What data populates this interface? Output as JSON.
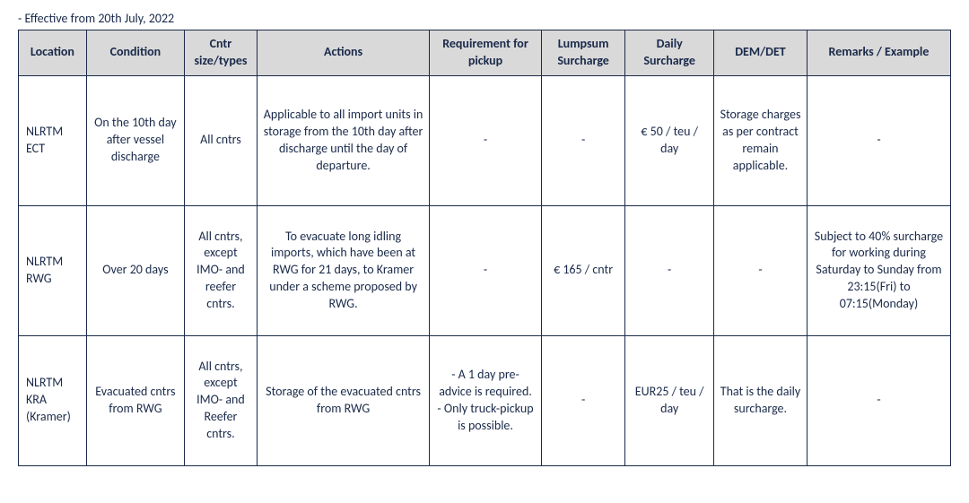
{
  "effective_text": "- Effective from 20th July, 2022",
  "columns": [
    "Location",
    "Condition",
    "Cntr size/types",
    "Actions",
    "Requirement for pickup",
    "Lumpsum Surcharge",
    "Daily Surcharge",
    "DEM/DET",
    "Remarks / Example"
  ],
  "rows": [
    {
      "location": "NLRTM ECT",
      "condition": "On the 10th day after vessel discharge",
      "size": "All cntrs",
      "actions": "Applicable to all import units in storage from the 10th day after discharge until the day of departure.",
      "requirement": "-",
      "lumpsum": "-",
      "daily": "€ 50 / teu / day",
      "demdet": "Storage charges as per contract remain applicable.",
      "remarks": "-"
    },
    {
      "location": "NLRTM RWG",
      "condition": "Over 20 days",
      "size": "All cntrs, except IMO- and reefer cntrs.",
      "actions": "To evacuate long idling imports, which have been at RWG for 21 days, to Kramer under a scheme proposed by RWG.",
      "requirement": "-",
      "lumpsum": "€ 165 / cntr",
      "daily": "-",
      "demdet": "-",
      "remarks": "Subject to 40% surcharge for working during Saturday to Sunday from 23:15(Fri) to 07:15(Monday)"
    },
    {
      "location": "NLRTM KRA (Kramer)",
      "condition": "Evacuated cntrs from RWG",
      "size": "All cntrs, except IMO- and Reefer cntrs.",
      "actions": "Storage of the evacuated cntrs from RWG",
      "requirement": "- A 1 day pre-advice is required.\n- Only truck-pickup is possible.",
      "lumpsum": "-",
      "daily": "EUR25 / teu / day",
      "demdet": "That is the daily surcharge.",
      "remarks": "-"
    }
  ]
}
